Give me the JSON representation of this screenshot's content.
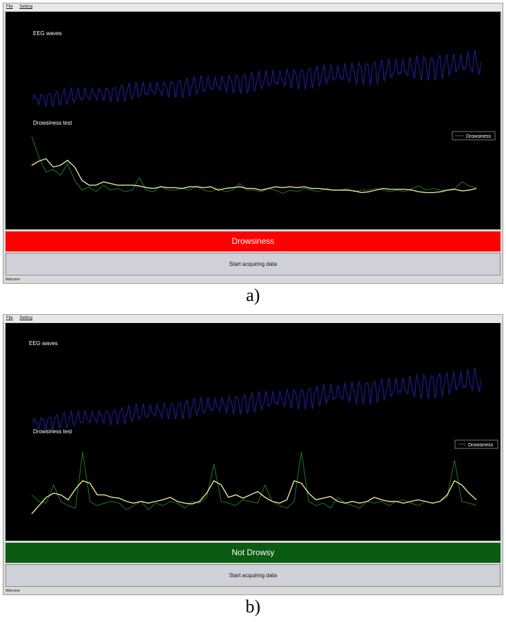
{
  "panels": [
    {
      "id": "a",
      "menu": [
        "File",
        "Setting"
      ],
      "eeg_label": "EEG waves",
      "drowsiness_label": "Drowsiness test",
      "legend_label": "Drowsiness",
      "status_text": "Drowsiness",
      "status_color": "#ff0000",
      "button_label": "Start acquiring data",
      "statusbar_text": "Welcome",
      "caption": "a)"
    },
    {
      "id": "b",
      "menu": [
        "File",
        "Setting"
      ],
      "eeg_label": "EEG waves",
      "drowsiness_label": "Drowsiness test",
      "legend_label": "Drowsiness",
      "status_text": "Not Drowsy",
      "status_color": "#0a5c12",
      "button_label": "Start acquiring data",
      "statusbar_text": "Welcome",
      "caption": "b)"
    }
  ],
  "chart_data": [
    {
      "type": "line",
      "panel": "a",
      "title": "EEG waves",
      "series": [
        {
          "color": "#1a1a8c",
          "trend": [
            0.25,
            0.85
          ],
          "oscillating": true
        }
      ]
    },
    {
      "type": "line",
      "panel": "a",
      "title": "Drowsiness test",
      "series": [
        {
          "name": "Drowsiness",
          "color": "#1f7a2a",
          "values": [
            0.95,
            0.7,
            0.52,
            0.55,
            0.48,
            0.62,
            0.42,
            0.3,
            0.34,
            0.28,
            0.36,
            0.3,
            0.32,
            0.28,
            0.3,
            0.45,
            0.3,
            0.28,
            0.35,
            0.3,
            0.3,
            0.32,
            0.3,
            0.35,
            0.3,
            0.28,
            0.32,
            0.28,
            0.3,
            0.38,
            0.3,
            0.3,
            0.28,
            0.32,
            0.3,
            0.26,
            0.3,
            0.28,
            0.32,
            0.3,
            0.28,
            0.32,
            0.3,
            0.3,
            0.32,
            0.28,
            0.3,
            0.3,
            0.32,
            0.3,
            0.28,
            0.3,
            0.28,
            0.32,
            0.35,
            0.3,
            0.32,
            0.3,
            0.3,
            0.32,
            0.4,
            0.35,
            0.33
          ]
        },
        {
          "color": "#e8e89a",
          "values": [
            0.6,
            0.65,
            0.68,
            0.58,
            0.6,
            0.66,
            0.58,
            0.42,
            0.36,
            0.36,
            0.4,
            0.38,
            0.36,
            0.36,
            0.36,
            0.35,
            0.33,
            0.32,
            0.34,
            0.33,
            0.33,
            0.32,
            0.34,
            0.34,
            0.33,
            0.34,
            0.3,
            0.32,
            0.33,
            0.34,
            0.32,
            0.32,
            0.3,
            0.32,
            0.34,
            0.33,
            0.34,
            0.33,
            0.34,
            0.32,
            0.32,
            0.31,
            0.3,
            0.3,
            0.3,
            0.29,
            0.27,
            0.28,
            0.3,
            0.32,
            0.31,
            0.31,
            0.31,
            0.3,
            0.28,
            0.27,
            0.27,
            0.28,
            0.3,
            0.31,
            0.29,
            0.3,
            0.32
          ]
        }
      ]
    },
    {
      "type": "line",
      "panel": "b",
      "title": "EEG waves",
      "series": [
        {
          "color": "#1a1a8c",
          "trend": [
            0.05,
            0.75
          ],
          "oscillating": true
        }
      ]
    },
    {
      "type": "line",
      "panel": "b",
      "title": "Drowsiness test",
      "series": [
        {
          "name": "Drowsiness",
          "color": "#1f7a2a",
          "values": [
            0.38,
            0.3,
            0.28,
            0.5,
            0.3,
            0.25,
            0.22,
            0.9,
            0.3,
            0.25,
            0.28,
            0.3,
            0.28,
            0.2,
            0.25,
            0.3,
            0.2,
            0.28,
            0.25,
            0.3,
            0.28,
            0.22,
            0.3,
            0.28,
            0.35,
            0.75,
            0.3,
            0.28,
            0.25,
            0.32,
            0.3,
            0.28,
            0.5,
            0.3,
            0.25,
            0.22,
            0.3,
            0.9,
            0.3,
            0.25,
            0.28,
            0.22,
            0.35,
            0.28,
            0.25,
            0.22,
            0.3,
            0.28,
            0.3,
            0.25,
            0.3,
            0.32,
            0.28,
            0.25,
            0.3,
            0.28,
            0.3,
            0.35,
            0.8,
            0.3,
            0.28,
            0.25
          ]
        },
        {
          "color": "#e8e89a",
          "values": [
            0.15,
            0.25,
            0.35,
            0.4,
            0.38,
            0.32,
            0.45,
            0.55,
            0.52,
            0.38,
            0.38,
            0.35,
            0.34,
            0.3,
            0.28,
            0.3,
            0.28,
            0.3,
            0.32,
            0.35,
            0.3,
            0.28,
            0.27,
            0.3,
            0.4,
            0.55,
            0.5,
            0.35,
            0.38,
            0.34,
            0.38,
            0.42,
            0.35,
            0.3,
            0.28,
            0.32,
            0.55,
            0.52,
            0.4,
            0.32,
            0.34,
            0.36,
            0.3,
            0.28,
            0.3,
            0.28,
            0.3,
            0.35,
            0.32,
            0.3,
            0.3,
            0.28,
            0.3,
            0.32,
            0.3,
            0.28,
            0.3,
            0.38,
            0.55,
            0.5,
            0.4,
            0.32
          ]
        }
      ]
    }
  ]
}
